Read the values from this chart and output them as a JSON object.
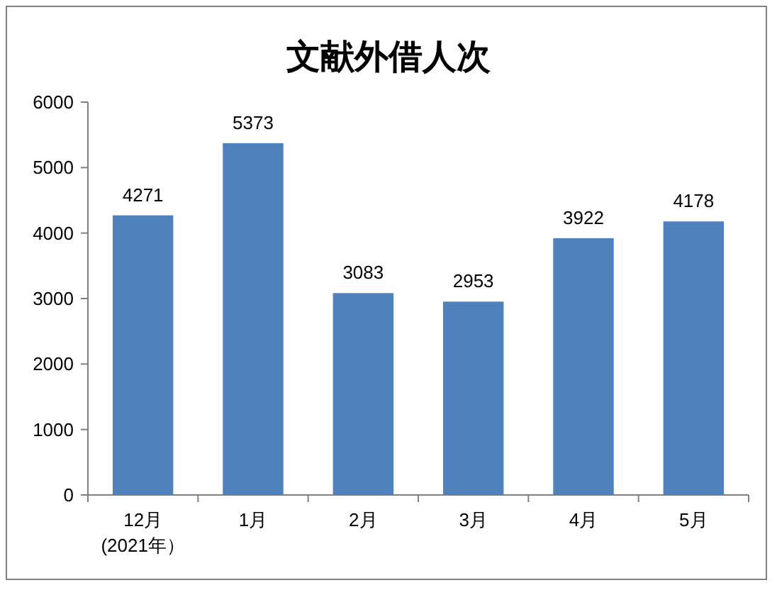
{
  "chart_data": {
    "type": "bar",
    "title": "文献外借人次",
    "categories": [
      "12月\n(2021年）",
      "1月",
      "2月",
      "3月",
      "4月",
      "5月"
    ],
    "values": [
      4271,
      5373,
      3083,
      2953,
      3922,
      4178
    ],
    "color": "#4f81bd",
    "ylim": [
      0,
      6000
    ],
    "yticks": [
      0,
      1000,
      2000,
      3000,
      4000,
      5000,
      6000
    ],
    "data_labels": true,
    "grid": false
  }
}
